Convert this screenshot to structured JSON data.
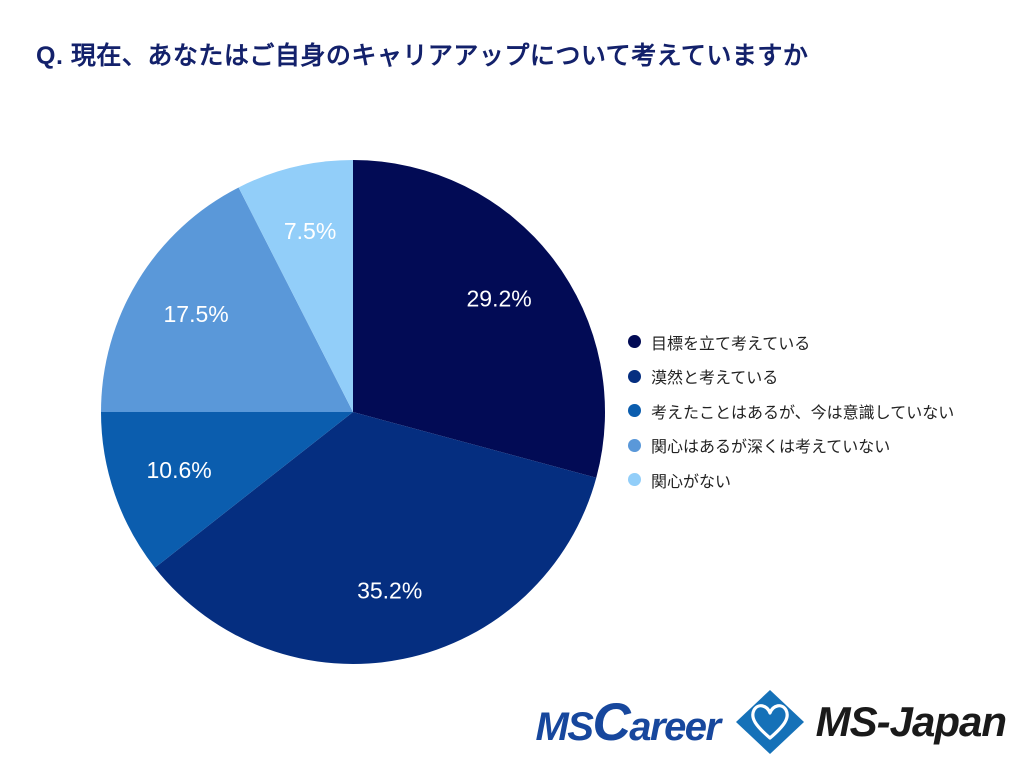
{
  "chart_data": {
    "type": "pie",
    "title": "Q. 現在、あなたはご自身のキャリアアップについて考えていますか",
    "categories": [
      "目標を立て考えている",
      "漠然と考えている",
      "考えたことはあるが、今は意識していない",
      "関心はあるが深くは考えていない",
      "関心がない"
    ],
    "values": [
      29.2,
      35.2,
      10.6,
      17.5,
      7.5
    ],
    "labels": [
      "29.2%",
      "35.2%",
      "10.6%",
      "17.5%",
      "7.5%"
    ],
    "colors": [
      "#020B55",
      "#052E80",
      "#0B5DAE",
      "#5A98D9",
      "#92CEF9"
    ],
    "value_label_color": "#FFFFFF",
    "start_angle_deg": 0,
    "direction": "clockwise",
    "legend_position": "right",
    "title_color": "#13216B"
  },
  "footer": {
    "mscareer": {
      "part1": "MS",
      "part2": "C",
      "part3": "areer",
      "color": "#17479D"
    },
    "ms_japan": {
      "text": "MS-Japan",
      "color": "#1A1A1A",
      "diamond_color": "#1571B8"
    }
  }
}
